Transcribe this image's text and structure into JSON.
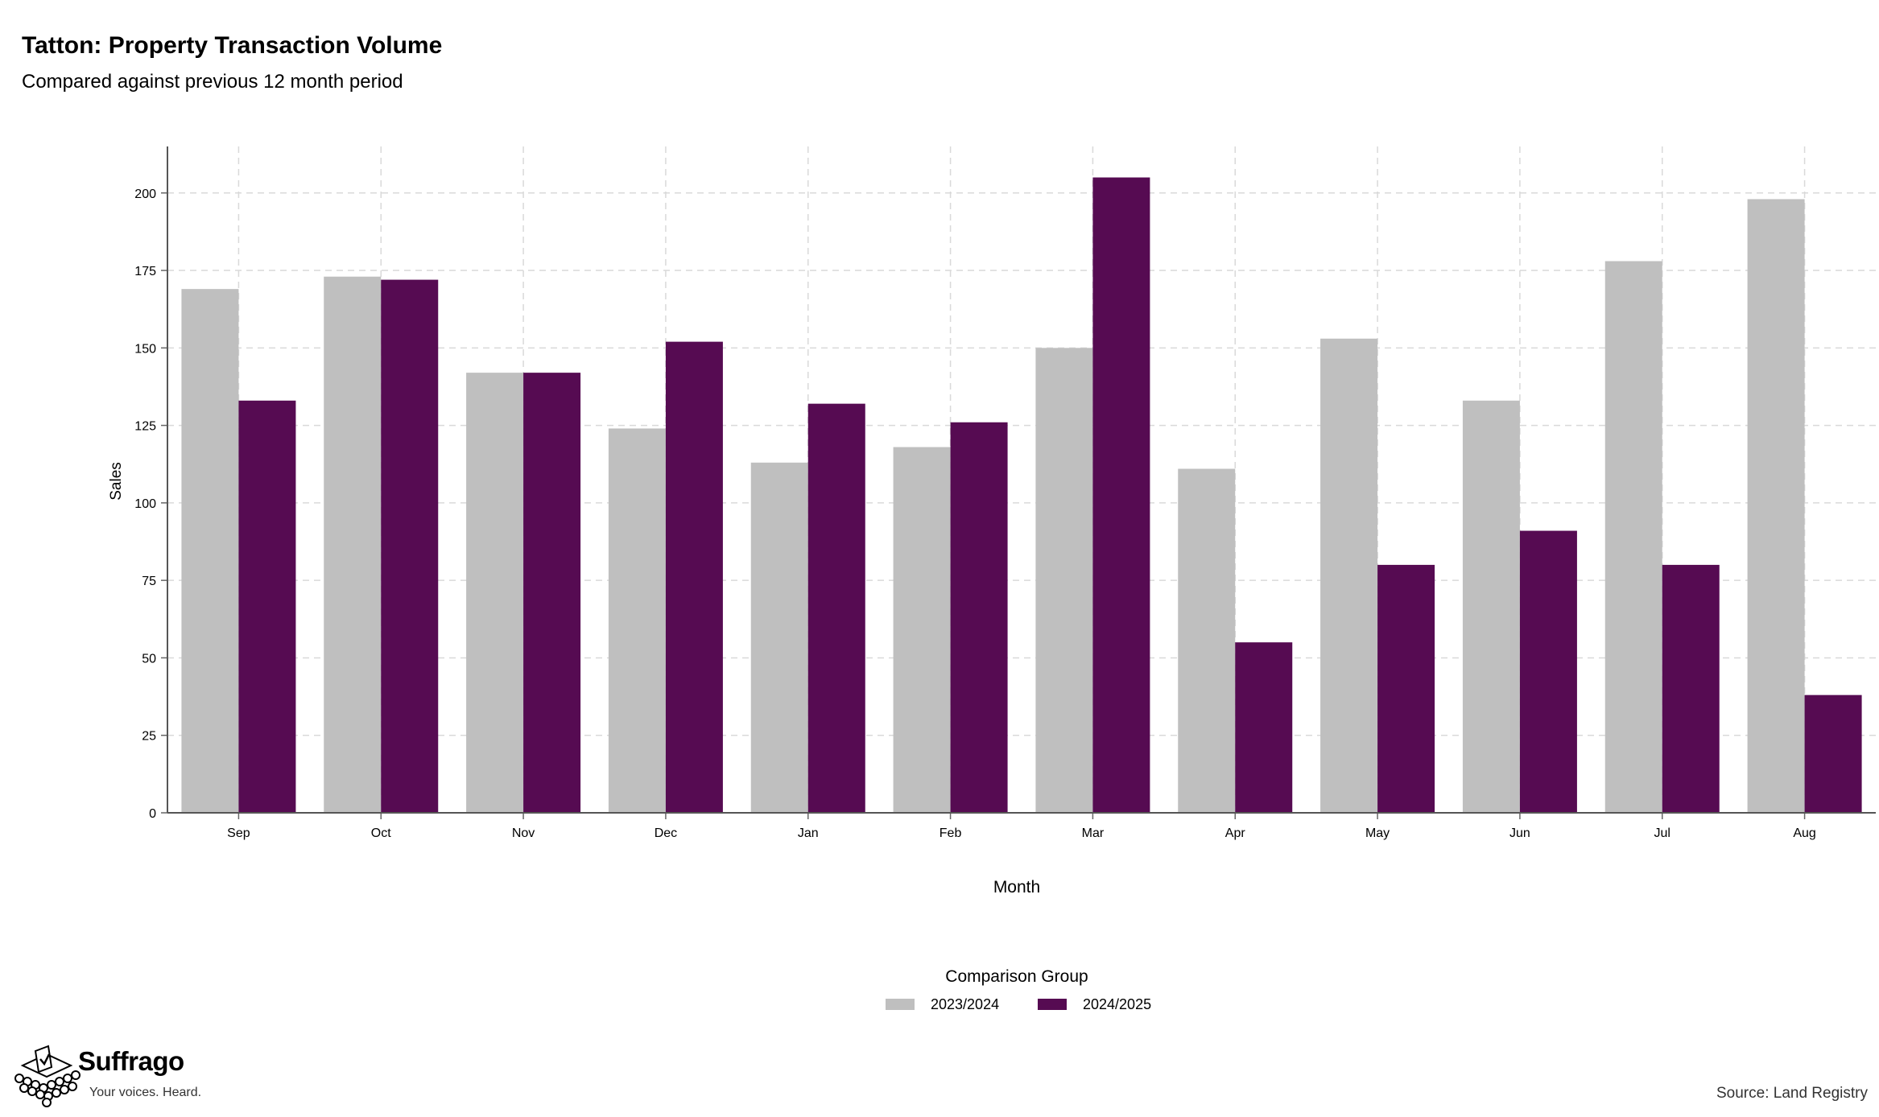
{
  "chart_data": {
    "type": "bar",
    "title": "Tatton: Property Transaction Volume",
    "subtitle": "Compared against previous 12 month period",
    "xlabel": "Month",
    "ylabel": "Sales",
    "categories": [
      "Sep",
      "Oct",
      "Nov",
      "Dec",
      "Jan",
      "Feb",
      "Mar",
      "Apr",
      "May",
      "Jun",
      "Jul",
      "Aug"
    ],
    "series": [
      {
        "name": "2023/2024",
        "color": "#bfbfbf",
        "values": [
          169,
          173,
          142,
          124,
          113,
          118,
          150,
          111,
          153,
          133,
          178,
          198
        ]
      },
      {
        "name": "2024/2025",
        "color": "#560b52",
        "values": [
          133,
          172,
          142,
          152,
          132,
          126,
          205,
          55,
          80,
          91,
          80,
          38
        ]
      }
    ],
    "ylim": [
      0,
      215
    ],
    "yticks": [
      0,
      25,
      50,
      75,
      100,
      125,
      150,
      175,
      200
    ],
    "grid": true,
    "legend": {
      "title": "Comparison Group",
      "position": "bottom"
    }
  },
  "branding": {
    "name": "Suffrago",
    "tagline": "Your voices. Heard."
  },
  "source": "Source: Land Registry"
}
